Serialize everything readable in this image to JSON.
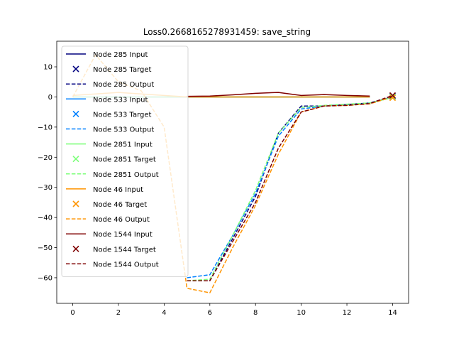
{
  "chart_data": {
    "type": "line",
    "title": "Loss0.2668165278931459: save_string",
    "xlabel": "",
    "ylabel": "",
    "xlim": [
      -0.7,
      14.7
    ],
    "ylim": [
      -68.5,
      18.5
    ],
    "xticks": [
      0,
      2,
      4,
      6,
      8,
      10,
      12,
      14
    ],
    "yticks": [
      10,
      0,
      -10,
      -20,
      -30,
      -40,
      -50,
      -60
    ],
    "grid": false,
    "legend_position": "upper-left",
    "series": [
      {
        "name": "Node 285 Input",
        "kind": "input",
        "color": "#00007f",
        "x": [
          0,
          1,
          2,
          3,
          4,
          5,
          6,
          7,
          8,
          9,
          10,
          11,
          12,
          13
        ],
        "y": [
          0,
          0,
          0,
          0,
          0,
          0,
          0,
          0,
          0,
          0,
          0,
          0,
          0,
          0
        ]
      },
      {
        "name": "Node 285 Target",
        "kind": "target",
        "color": "#00007f",
        "x": [
          14
        ],
        "y": [
          0.3
        ]
      },
      {
        "name": "Node 285 Output",
        "kind": "output",
        "color": "#00007f",
        "x": [
          5,
          6,
          7,
          8,
          9,
          10,
          11,
          12,
          13,
          14
        ],
        "y": [
          -61,
          -61,
          -47,
          -33,
          -12,
          -3,
          -3,
          -2.5,
          -2,
          0.2
        ]
      },
      {
        "name": "Node 533 Input",
        "kind": "input",
        "color": "#0080ff",
        "x": [
          0,
          1,
          2,
          3,
          4,
          5,
          6,
          7,
          8,
          9,
          10,
          11,
          12,
          13
        ],
        "y": [
          0,
          0,
          0,
          0,
          0,
          0,
          0,
          0,
          0,
          0,
          0,
          0,
          0,
          0
        ]
      },
      {
        "name": "Node 533 Target",
        "kind": "target",
        "color": "#0080ff",
        "x": [
          14
        ],
        "y": [
          0.2
        ]
      },
      {
        "name": "Node 533 Output",
        "kind": "output",
        "color": "#0080ff",
        "x": [
          5,
          6,
          7,
          8,
          9,
          10,
          11,
          12,
          13,
          14
        ],
        "y": [
          -60,
          -59,
          -46,
          -32,
          -13,
          -4,
          -3,
          -2.6,
          -2,
          0
        ]
      },
      {
        "name": "Node 2851 Input",
        "kind": "input",
        "color": "#7cff79",
        "x": [
          0,
          1,
          2,
          3,
          4,
          5,
          6,
          7,
          8,
          9,
          10,
          11,
          12,
          13
        ],
        "y": [
          0,
          0,
          0,
          0,
          0,
          0,
          0,
          0,
          0,
          0,
          0,
          0,
          0,
          0
        ]
      },
      {
        "name": "Node 2851 Target",
        "kind": "target",
        "color": "#7cff79",
        "x": [
          14
        ],
        "y": [
          0
        ]
      },
      {
        "name": "Node 2851 Output",
        "kind": "output",
        "color": "#7cff79",
        "x": [
          5,
          6,
          7,
          8,
          9,
          10,
          11,
          12,
          13,
          14
        ],
        "y": [
          -61,
          -60.5,
          -46,
          -31,
          -12,
          -3.5,
          -2.8,
          -2.4,
          -2,
          -0.2
        ]
      },
      {
        "name": "Node 46 Input",
        "kind": "input",
        "color": "#ff9400",
        "x": [
          0,
          1,
          2,
          3,
          4,
          5,
          6,
          7,
          8,
          9,
          10,
          11,
          12,
          13
        ],
        "y": [
          0.5,
          1,
          1.5,
          1,
          0.5,
          0,
          0,
          0,
          0,
          0,
          0,
          0,
          0,
          0
        ]
      },
      {
        "name": "Node 46 Target",
        "kind": "target",
        "color": "#ff9400",
        "x": [
          14
        ],
        "y": [
          -0.3
        ]
      },
      {
        "name": "Node 46 Output",
        "kind": "output",
        "color": "#ff9400",
        "x": [
          0,
          1,
          2,
          3,
          4,
          5,
          6,
          7,
          8,
          9,
          10,
          11,
          12,
          13,
          14
        ],
        "y": [
          0,
          14,
          5,
          2,
          -10,
          -63.5,
          -65,
          -50,
          -36,
          -19,
          -5,
          -3,
          -2.8,
          -2.3,
          0
        ]
      },
      {
        "name": "Node 1544 Input",
        "kind": "input",
        "color": "#7f0000",
        "x": [
          5,
          6,
          7,
          8,
          9,
          10,
          11,
          12,
          13
        ],
        "y": [
          0.2,
          0.3,
          0.7,
          1.2,
          1.5,
          0.5,
          0.8,
          0.5,
          0.3
        ]
      },
      {
        "name": "Node 1544 Target",
        "kind": "target",
        "color": "#7f0000",
        "x": [
          14
        ],
        "y": [
          0.5
        ]
      },
      {
        "name": "Node 1544 Output",
        "kind": "output",
        "color": "#7f0000",
        "x": [
          5,
          6,
          7,
          8,
          9,
          10,
          11,
          12,
          13,
          14
        ],
        "y": [
          -61,
          -61,
          -48,
          -35,
          -17,
          -5,
          -3,
          -2.8,
          -2.2,
          0.5
        ]
      }
    ]
  }
}
